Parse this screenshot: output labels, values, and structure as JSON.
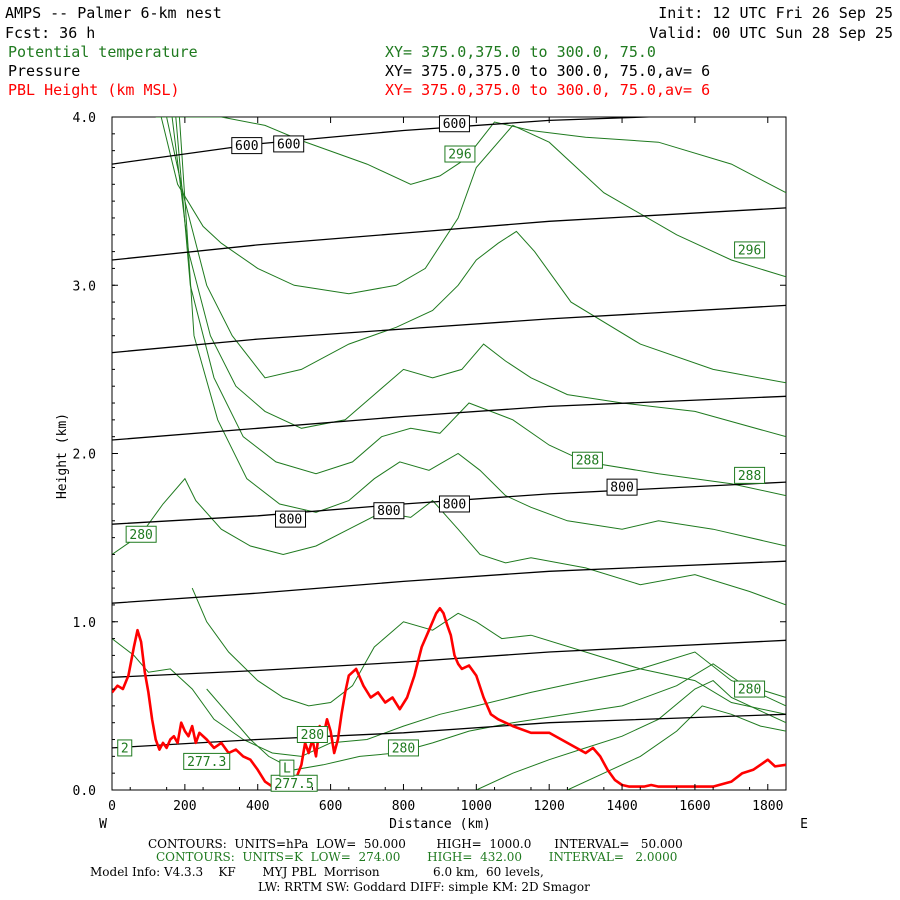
{
  "header": {
    "title": "AMPS -- Palmer 6-km nest",
    "fcst": "Fcst:   36 h",
    "init": "Init: 12 UTC Fri 26 Sep 25",
    "valid": "Valid: 00 UTC Sun 28 Sep 25",
    "fields": [
      {
        "name": "Potential temperature",
        "xy": "XY= 375.0,375.0 to 300.0, 75.0",
        "color": "#1f7a1f"
      },
      {
        "name": "Pressure",
        "xy": "XY= 375.0,375.0 to 300.0, 75.0,av=  6",
        "color": "#000000"
      },
      {
        "name": "PBL Height (km MSL)",
        "xy": "XY= 375.0,375.0 to 300.0, 75.0,av=  6",
        "color": "#ff0000"
      }
    ]
  },
  "footer": {
    "line1": "CONTOURS:  UNITS=hPa  LOW=  50.000        HIGH=  1000.0      INTERVAL=   50.000",
    "line2": "CONTOURS:  UNITS=K  LOW=  274.00       HIGH=  432.00       INTERVAL=   2.0000",
    "line3": "Model Info: V4.3.3    KF       MYJ PBL  Morrison              6.0 km,  60 levels,",
    "line4": "LW: RRTM SW: Goddard DIFF: simple KM: 2D Smagor"
  },
  "chart_data": {
    "type": "line",
    "title": "Cross section: Potential temperature, Pressure, PBL Height",
    "xlabel": "Distance (km)",
    "ylabel": "Height (km)",
    "xlim": [
      0,
      1850
    ],
    "ylim": [
      0,
      4
    ],
    "x_ticks": [
      0,
      200,
      400,
      600,
      800,
      1000,
      1200,
      1400,
      1600,
      1800
    ],
    "y_ticks": [
      0.0,
      1.0,
      2.0,
      3.0,
      4.0
    ],
    "x_ticks_text": [
      "0",
      "200",
      "400",
      "600",
      "800",
      "1000",
      "1200",
      "1400",
      "1600",
      "1800"
    ],
    "y_ticks_text": [
      "0.0",
      "1.0",
      "2.0",
      "3.0",
      "4.0"
    ],
    "left_end": "W",
    "right_end": "E",
    "pressure_lines": [
      {
        "hpa": 600,
        "x": [
          0,
          400,
          800,
          1200,
          1850
        ],
        "y": [
          3.72,
          3.84,
          3.92,
          3.98,
          4.03
        ]
      },
      {
        "hpa": 650,
        "x": [
          0,
          400,
          800,
          1200,
          1850
        ],
        "y": [
          3.15,
          3.24,
          3.31,
          3.38,
          3.46
        ]
      },
      {
        "hpa": 700,
        "x": [
          0,
          400,
          800,
          1200,
          1850
        ],
        "y": [
          2.6,
          2.68,
          2.74,
          2.8,
          2.88
        ]
      },
      {
        "hpa": 750,
        "x": [
          0,
          400,
          800,
          1200,
          1850
        ],
        "y": [
          2.08,
          2.15,
          2.22,
          2.28,
          2.34
        ]
      },
      {
        "hpa": 800,
        "x": [
          0,
          400,
          800,
          1200,
          1850
        ],
        "y": [
          1.58,
          1.63,
          1.7,
          1.76,
          1.83
        ]
      },
      {
        "hpa": 850,
        "x": [
          0,
          400,
          800,
          1200,
          1850
        ],
        "y": [
          1.11,
          1.17,
          1.24,
          1.3,
          1.36
        ]
      },
      {
        "hpa": 900,
        "x": [
          0,
          400,
          800,
          1200,
          1850
        ],
        "y": [
          0.67,
          0.71,
          0.76,
          0.82,
          0.89
        ]
      },
      {
        "hpa": 950,
        "x": [
          0,
          400,
          800,
          1200,
          1850
        ],
        "y": [
          0.25,
          0.3,
          0.34,
          0.4,
          0.45
        ]
      }
    ],
    "pressure_labels": [
      {
        "text": "600",
        "x": 370,
        "y": 3.83
      },
      {
        "text": "600",
        "x": 485,
        "y": 3.84
      },
      {
        "text": "600",
        "x": 940,
        "y": 3.96
      },
      {
        "text": "800",
        "x": 490,
        "y": 1.61
      },
      {
        "text": "800",
        "x": 760,
        "y": 1.66
      },
      {
        "text": "800",
        "x": 940,
        "y": 1.7
      },
      {
        "text": "800",
        "x": 1400,
        "y": 1.8
      }
    ],
    "theta_labels": [
      {
        "text": "296",
        "x": 955,
        "y": 3.78
      },
      {
        "text": "296",
        "x": 1750,
        "y": 3.21
      },
      {
        "text": "288",
        "x": 1305,
        "y": 1.96
      },
      {
        "text": "288",
        "x": 1750,
        "y": 1.87
      },
      {
        "text": "280",
        "x": 80,
        "y": 1.52
      },
      {
        "text": "280",
        "x": 1750,
        "y": 0.6
      },
      {
        "text": "280",
        "x": 800,
        "y": 0.25
      },
      {
        "text": "280",
        "x": 550,
        "y": 0.33
      },
      {
        "text": "277.3",
        "x": 260,
        "y": 0.17
      },
      {
        "text": "277.5",
        "x": 500,
        "y": 0.04
      },
      {
        "text": "L",
        "x": 480,
        "y": 0.13
      },
      {
        "text": "2",
        "x": 35,
        "y": 0.25
      }
    ],
    "theta_contours": [
      {
        "x": [
          120,
          220,
          300,
          420,
          520,
          700,
          820,
          900,
          970,
          1050,
          1150,
          1300,
          1500,
          1700,
          1850
        ],
        "y": [
          4.0,
          4.0,
          4.0,
          3.95,
          3.86,
          3.72,
          3.6,
          3.65,
          3.75,
          3.97,
          3.92,
          3.88,
          3.85,
          3.72,
          3.55
        ]
      },
      {
        "x": [
          135,
          180,
          250,
          300,
          400,
          500,
          650,
          780,
          860,
          950,
          1000,
          1100,
          1200,
          1350,
          1550,
          1700,
          1850
        ],
        "y": [
          4.0,
          3.6,
          3.35,
          3.25,
          3.1,
          3.0,
          2.95,
          3.0,
          3.1,
          3.4,
          3.7,
          3.95,
          3.85,
          3.55,
          3.3,
          3.15,
          3.05
        ]
      },
      {
        "x": [
          150,
          200,
          260,
          330,
          420,
          520,
          650,
          780,
          880,
          950,
          1000,
          1060,
          1110,
          1160,
          1260,
          1450,
          1650,
          1850
        ],
        "y": [
          4.0,
          3.5,
          3.0,
          2.7,
          2.45,
          2.5,
          2.65,
          2.75,
          2.85,
          3.0,
          3.15,
          3.25,
          3.32,
          3.2,
          2.9,
          2.65,
          2.5,
          2.42
        ]
      },
      {
        "x": [
          165,
          210,
          270,
          340,
          420,
          520,
          640,
          720,
          800,
          880,
          960,
          1020,
          1080,
          1150,
          1250,
          1400,
          1600,
          1850
        ],
        "y": [
          4.0,
          3.2,
          2.7,
          2.4,
          2.25,
          2.15,
          2.2,
          2.35,
          2.5,
          2.45,
          2.5,
          2.65,
          2.55,
          2.45,
          2.35,
          2.3,
          2.25,
          2.1
        ]
      },
      {
        "x": [
          175,
          215,
          280,
          360,
          450,
          560,
          660,
          740,
          820,
          900,
          980,
          1040,
          1100,
          1200,
          1300,
          1500,
          1700,
          1850
        ],
        "y": [
          4.0,
          3.0,
          2.45,
          2.1,
          1.95,
          1.88,
          1.95,
          2.1,
          2.15,
          2.12,
          2.3,
          2.25,
          2.2,
          2.05,
          1.95,
          1.88,
          1.82,
          1.75
        ]
      },
      {
        "x": [
          185,
          225,
          290,
          370,
          460,
          560,
          650,
          720,
          790,
          870,
          950,
          1010,
          1080,
          1150,
          1250,
          1400,
          1500,
          1650,
          1850
        ],
        "y": [
          4.0,
          2.7,
          2.2,
          1.85,
          1.7,
          1.65,
          1.72,
          1.85,
          1.95,
          1.9,
          2.0,
          1.9,
          1.75,
          1.68,
          1.6,
          1.55,
          1.6,
          1.55,
          1.45
        ]
      },
      {
        "x": [
          0,
          80,
          140,
          200,
          230,
          300,
          380,
          470,
          560,
          650,
          740,
          820,
          880,
          950,
          1010,
          1080,
          1150,
          1300,
          1450,
          1600,
          1750,
          1850
        ],
        "y": [
          1.4,
          1.52,
          1.7,
          1.85,
          1.72,
          1.55,
          1.45,
          1.4,
          1.45,
          1.55,
          1.65,
          1.62,
          1.72,
          1.55,
          1.4,
          1.35,
          1.38,
          1.32,
          1.22,
          1.28,
          1.18,
          1.1
        ]
      },
      {
        "x": [
          220,
          260,
          320,
          400,
          470,
          540,
          600,
          660,
          720,
          800,
          880,
          950,
          1000,
          1070,
          1150,
          1300,
          1450,
          1600,
          1700,
          1850
        ],
        "y": [
          1.2,
          1.0,
          0.82,
          0.65,
          0.55,
          0.5,
          0.52,
          0.62,
          0.85,
          1.0,
          0.95,
          1.05,
          1.0,
          0.9,
          0.92,
          0.82,
          0.72,
          0.65,
          0.52,
          0.45
        ]
      },
      {
        "x": [
          0,
          60,
          100,
          160,
          220,
          280,
          360,
          440,
          520,
          600,
          700,
          800,
          900,
          1000,
          1150,
          1300,
          1450,
          1600,
          1700,
          1850
        ],
        "y": [
          0.9,
          0.8,
          0.7,
          0.72,
          0.6,
          0.42,
          0.3,
          0.22,
          0.2,
          0.28,
          0.3,
          0.38,
          0.45,
          0.5,
          0.58,
          0.65,
          0.72,
          0.82,
          0.65,
          0.55
        ]
      },
      {
        "x": [
          260,
          320,
          380,
          430,
          500,
          580,
          680,
          780,
          880,
          980,
          1100,
          1250,
          1400,
          1550,
          1650,
          1750,
          1850
        ],
        "y": [
          0.6,
          0.45,
          0.3,
          0.2,
          0.12,
          0.15,
          0.2,
          0.22,
          0.28,
          0.35,
          0.4,
          0.45,
          0.5,
          0.62,
          0.75,
          0.6,
          0.5
        ]
      },
      {
        "x": [
          1000,
          1100,
          1200,
          1300,
          1400,
          1500,
          1600,
          1650,
          1700,
          1800,
          1850
        ],
        "y": [
          0.0,
          0.1,
          0.18,
          0.25,
          0.32,
          0.42,
          0.6,
          0.65,
          0.55,
          0.45,
          0.4
        ]
      },
      {
        "x": [
          1250,
          1350,
          1450,
          1550,
          1620,
          1700,
          1780,
          1850
        ],
        "y": [
          0.0,
          0.1,
          0.2,
          0.35,
          0.5,
          0.45,
          0.38,
          0.35
        ]
      }
    ],
    "pbl_height": {
      "color": "#ff0000",
      "x": [
        0,
        15,
        30,
        45,
        60,
        70,
        80,
        90,
        100,
        110,
        120,
        130,
        140,
        150,
        160,
        170,
        180,
        190,
        200,
        210,
        220,
        230,
        240,
        260,
        280,
        300,
        320,
        340,
        360,
        380,
        400,
        420,
        440,
        460,
        470,
        480,
        500,
        520,
        530,
        540,
        550,
        560,
        570,
        580,
        590,
        600,
        610,
        620,
        630,
        640,
        650,
        670,
        690,
        710,
        730,
        750,
        770,
        790,
        810,
        830,
        850,
        870,
        890,
        900,
        910,
        920,
        930,
        940,
        950,
        960,
        980,
        1000,
        1020,
        1040,
        1060,
        1100,
        1150,
        1200,
        1250,
        1300,
        1320,
        1340,
        1360,
        1380,
        1400,
        1420,
        1440,
        1460,
        1480,
        1500,
        1550,
        1600,
        1650,
        1700,
        1730,
        1760,
        1780,
        1800,
        1820,
        1850
      ],
      "y": [
        0.58,
        0.62,
        0.6,
        0.68,
        0.85,
        0.95,
        0.88,
        0.7,
        0.58,
        0.42,
        0.3,
        0.24,
        0.28,
        0.25,
        0.3,
        0.32,
        0.28,
        0.4,
        0.35,
        0.32,
        0.38,
        0.28,
        0.34,
        0.3,
        0.25,
        0.28,
        0.22,
        0.24,
        0.2,
        0.18,
        0.12,
        0.05,
        0.02,
        0.02,
        0.05,
        0.03,
        0.04,
        0.15,
        0.28,
        0.22,
        0.3,
        0.2,
        0.38,
        0.32,
        0.42,
        0.35,
        0.22,
        0.3,
        0.45,
        0.58,
        0.68,
        0.72,
        0.62,
        0.55,
        0.58,
        0.52,
        0.55,
        0.48,
        0.55,
        0.68,
        0.85,
        0.95,
        1.05,
        1.08,
        1.05,
        0.98,
        0.92,
        0.8,
        0.75,
        0.72,
        0.74,
        0.68,
        0.55,
        0.45,
        0.42,
        0.38,
        0.34,
        0.34,
        0.28,
        0.22,
        0.25,
        0.2,
        0.12,
        0.06,
        0.03,
        0.02,
        0.02,
        0.02,
        0.03,
        0.02,
        0.02,
        0.02,
        0.02,
        0.05,
        0.1,
        0.12,
        0.15,
        0.18,
        0.14,
        0.15
      ]
    }
  }
}
